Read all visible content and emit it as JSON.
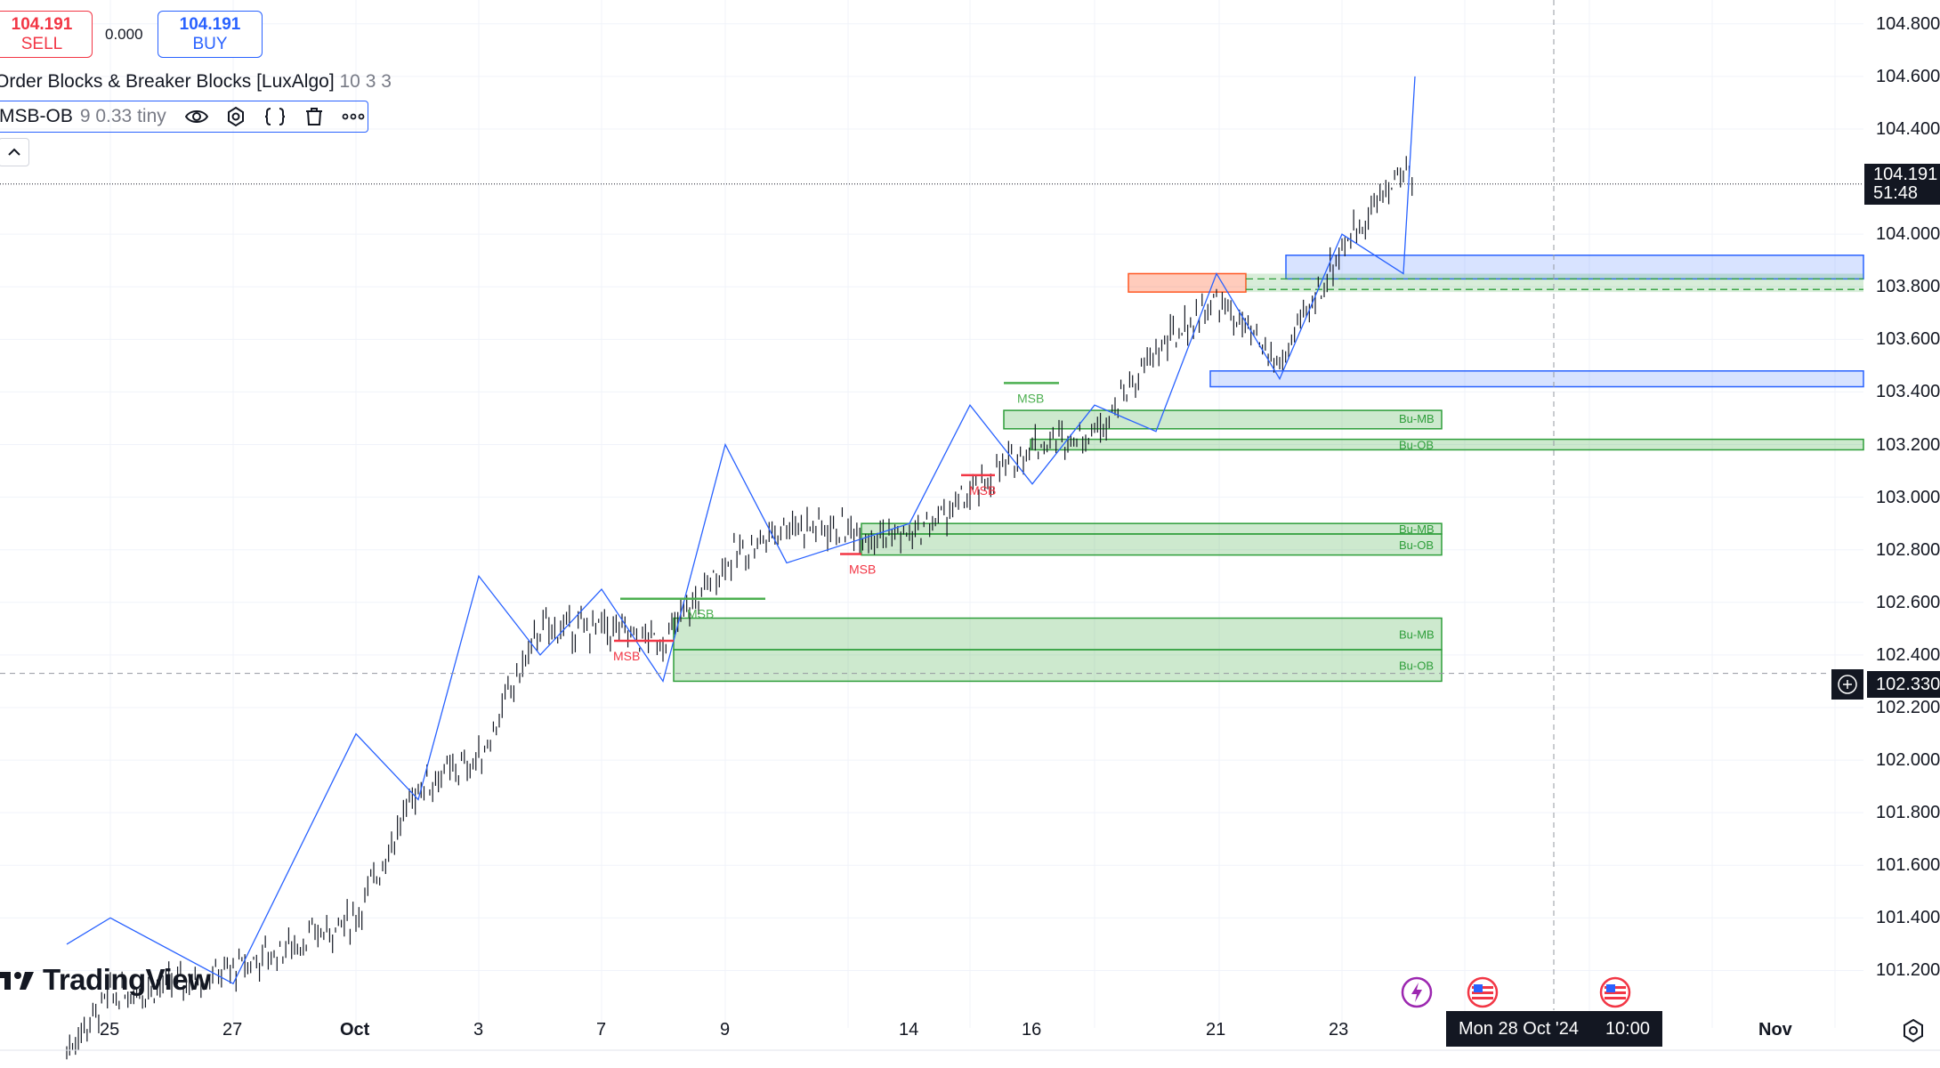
{
  "trade_panel": {
    "sell_price": "104.191",
    "sell_label": "SELL",
    "spread": "0.000",
    "buy_price": "104.191",
    "buy_label": "BUY"
  },
  "indicators": [
    {
      "name": "Order Blocks & Breaker Blocks [LuxAlgo]",
      "params": "10 3 3"
    },
    {
      "name": "MSB-OB",
      "params": "9 0.33 tiny"
    }
  ],
  "indicator_icons": [
    "eye-icon",
    "gear-icon",
    "source-code-icon",
    "trash-icon",
    "more-icon"
  ],
  "price_axis": {
    "ticks": [
      "104.800",
      "104.600",
      "104.400",
      "104.000",
      "103.800",
      "103.600",
      "103.400",
      "103.200",
      "103.000",
      "102.800",
      "102.600",
      "102.400",
      "102.200",
      "102.000",
      "101.800",
      "101.600",
      "101.400",
      "101.200"
    ],
    "current_price": "104.191",
    "countdown": "51:48",
    "crosshair_price": "102.330"
  },
  "time_axis": {
    "ticks": [
      "25",
      "27",
      "Oct",
      "3",
      "7",
      "9",
      "14",
      "16",
      "21",
      "23",
      "Nov"
    ],
    "crosshair_date": "Mon 28 Oct '24",
    "crosshair_time": "10:00"
  },
  "chart_annotations": {
    "msb": "MSB",
    "bu_mb": "Bu-MB",
    "bu_ob": "Bu-OB"
  },
  "branding": {
    "logo_text": "TradingView"
  },
  "colors": {
    "candle": "#131722",
    "zigzag": "#2962ff",
    "bull_zone_fill": "#4caf50",
    "bull_zone_border": "#2e9e3a",
    "bear_zone_fill": "#ff5722",
    "breaker_fill": "#2962ff",
    "msb_bear": "#f23645",
    "msb_bull": "#4caf50",
    "event_flag": "#f23645",
    "event_flash": "#9c27b0"
  },
  "chart_data": {
    "type": "candlestick",
    "x": [
      "2024-09-26",
      "2024-09-27",
      "2024-09-30",
      "2024-10-01",
      "2024-10-02",
      "2024-10-03",
      "2024-10-04",
      "2024-10-07",
      "2024-10-08",
      "2024-10-09",
      "2024-10-10",
      "2024-10-11",
      "2024-10-14",
      "2024-10-15",
      "2024-10-16",
      "2024-10-17",
      "2024-10-18",
      "2024-10-21",
      "2024-10-22",
      "2024-10-23",
      "2024-10-24"
    ],
    "close": [
      100.9,
      101.1,
      101.2,
      101.4,
      101.9,
      102.0,
      102.5,
      102.5,
      102.45,
      102.75,
      102.9,
      102.85,
      103.0,
      103.2,
      103.25,
      103.55,
      103.75,
      103.5,
      103.95,
      104.25,
      104.19
    ],
    "ylim": [
      101.1,
      104.85
    ],
    "zigzag_y": [
      101.3,
      101.4,
      101.15,
      102.1,
      101.85,
      102.7,
      102.4,
      102.65,
      102.3,
      103.2,
      102.75,
      102.9,
      103.35,
      103.05,
      103.35,
      103.25,
      103.85,
      103.45,
      104.0,
      103.85,
      104.6
    ],
    "zones": [
      {
        "type": "Bu-MB",
        "y_top": 102.54,
        "y_bottom": 102.42
      },
      {
        "type": "Bu-OB",
        "y_top": 102.42,
        "y_bottom": 102.3
      },
      {
        "type": "Bu-MB",
        "y_top": 102.9,
        "y_bottom": 102.86
      },
      {
        "type": "Bu-OB",
        "y_top": 102.86,
        "y_bottom": 102.78
      },
      {
        "type": "Bu-MB",
        "y_top": 103.33,
        "y_bottom": 103.26
      },
      {
        "type": "Bu-OB",
        "y_top": 103.22,
        "y_bottom": 103.18
      },
      {
        "type": "breaker",
        "y_top": 103.92,
        "y_bottom": 103.83
      },
      {
        "type": "breaker",
        "y_top": 103.48,
        "y_bottom": 103.42
      },
      {
        "type": "bear-OB",
        "y_top": 103.85,
        "y_bottom": 103.78
      }
    ],
    "grid": true
  }
}
